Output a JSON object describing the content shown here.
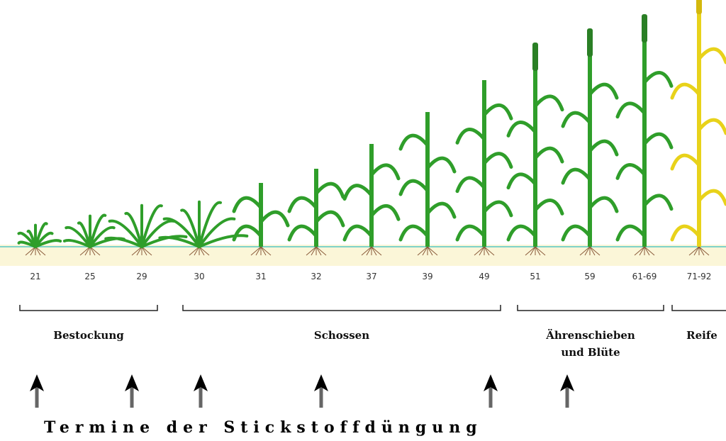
{
  "stages": [
    "21",
    "25",
    "29",
    "30",
    "31",
    "32",
    "37",
    "39",
    "49",
    "51",
    "59",
    "61-69",
    "71-92"
  ],
  "phases": [
    {
      "lines": [
        "Bestockung"
      ]
    },
    {
      "lines": [
        "Schossen"
      ]
    },
    {
      "lines": [
        "Ährenschieben",
        "und Blüte"
      ]
    },
    {
      "lines": [
        "Reife"
      ]
    }
  ],
  "caption": "Termine der Stickstoffdüngung"
}
